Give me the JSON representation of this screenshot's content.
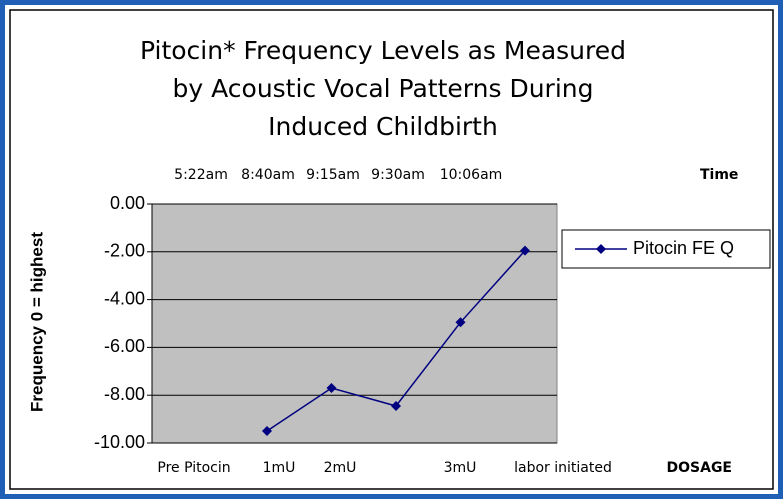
{
  "chart_data": {
    "type": "line",
    "title": [
      "Pitocin* Frequency Levels as Measured",
      "by Acoustic Vocal Patterns During",
      "Induced Childbirth"
    ],
    "time_labels": [
      "5:22am",
      "8:40am",
      "9:15am",
      "9:30am",
      "10:06am"
    ],
    "time_axis_label": "Time",
    "dosage_labels": [
      "Pre Pitocin",
      "1mU",
      "2mU",
      "3mU",
      "labor initiated"
    ],
    "dosage_axis_label": "DOSAGE",
    "y_axis_label": "Frequency 0 = highest",
    "series": [
      {
        "name": "Pitocin FE Q",
        "color": "#000080",
        "values": [
          -9.5,
          -7.7,
          -8.45,
          -4.95,
          -1.95
        ]
      }
    ],
    "ylim": [
      -10,
      0
    ],
    "yticks": [
      {
        "value": 0,
        "label": "0.00"
      },
      {
        "value": -2,
        "label": "-2.00"
      },
      {
        "value": -4,
        "label": "-4.00"
      },
      {
        "value": -6,
        "label": "-6.00"
      },
      {
        "value": -8,
        "label": "-8.00"
      },
      {
        "value": -10,
        "label": "-10.00"
      }
    ],
    "grid": true,
    "legend": "right"
  }
}
